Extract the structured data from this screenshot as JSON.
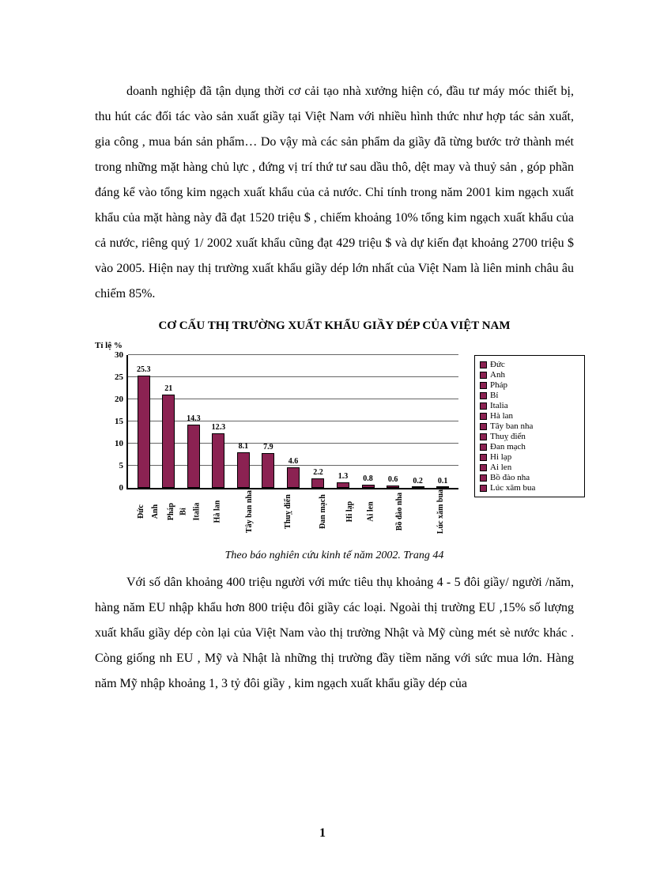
{
  "paragraphs": {
    "p1": "doanh nghiệp đã tận dụng thời cơ cải tạo nhà xưởng hiện có, đầu tư máy móc thiết bị, thu hút các đối tác vào sản xuất giầy tại Việt Nam với nhiều hình thức như hợp tác sản xuất, gia công , mua bán sản phẩm… Do vậy mà các sản phẩm da giầy đã từng bước trở thành mét trong những mặt hàng chủ lực , đứng vị trí thứ tư sau dầu thô, dệt may và thuỷ sản , góp phần đáng kể vào tổng kim ngạch xuất khẩu của cả nước. Chỉ tính trong năm 2001 kim ngạch xuất khẩu của mặt hàng này đã đạt 1520 triệu $ , chiếm khoảng 10% tổng kim ngạch xuất khẩu của cả nước, riêng quý 1/ 2002 xuất khẩu cũng đạt 429 triệu $ và dự kiến đạt khoảng 2700 triệu $ vào 2005. Hiện nay thị trường xuất khẩu giầy dép lớn nhất của Việt Nam là liên minh châu âu chiếm 85%.",
    "p2": "Với số dân khoảng 400 triệu người với mức tiêu thụ khoảng 4 - 5 đôi giầy/ người /năm, hàng năm EU nhập khẩu hơn 800 triệu đôi giầy các loại. Ngoài thị trường EU ,15% số lượng xuất khẩu giầy dép còn lại của Việt Nam vào thị trường Nhật và Mỹ cùng mét sè nước khác . Còng giống nh EU , Mỹ và Nhật là những thị trường đầy tiềm năng với sức mua lớn. Hàng năm Mỹ nhập khoảng 1, 3 tỷ đôi giầy , kim ngạch xuất khẩu giầy dép của"
  },
  "chart": {
    "title": "CƠ CẤU THỊ TRƯỜNG XUẤT KHẨU GIẦY DÉP CỦA VIỆT NAM",
    "ylabel": "Tỉ lệ %",
    "type": "bar",
    "ylim": [
      0,
      30
    ],
    "ytick_step": 5,
    "yticks": [
      0,
      5,
      10,
      15,
      20,
      25,
      30
    ],
    "bar_color": "#8b2252",
    "grid_color": "#666666",
    "axis_color": "#000000",
    "background_color": "#ffffff",
    "label_fontsize": 11,
    "value_fontsize": 10,
    "categories": [
      "Đức",
      "Anh",
      "Pháp",
      "Bỉ",
      "Italia",
      "Hà lan",
      "Tây ban nha",
      "Thuỵ điển",
      "Đan mạch",
      "Hi lạp",
      "Ai len",
      "Bồ đào nha",
      "Lúc xăm bua"
    ],
    "values": [
      25.3,
      21,
      14.3,
      12.3,
      8.1,
      7.9,
      4.6,
      2.2,
      1.3,
      0.8,
      0.6,
      0.2,
      0.1
    ],
    "legend_items": [
      "Đức",
      "Anh",
      "Pháp",
      "Bỉ",
      "Italia",
      "Hà lan",
      "Tây ban nha",
      "Thuỵ điển",
      "Đan mạch",
      "Hi lạp",
      "Ai len",
      "Bồ đào nha",
      "Lúc xăm bua"
    ]
  },
  "caption": "Theo báo nghiên cứu kinh tế năm 2002. Trang 44",
  "page_number": "1"
}
